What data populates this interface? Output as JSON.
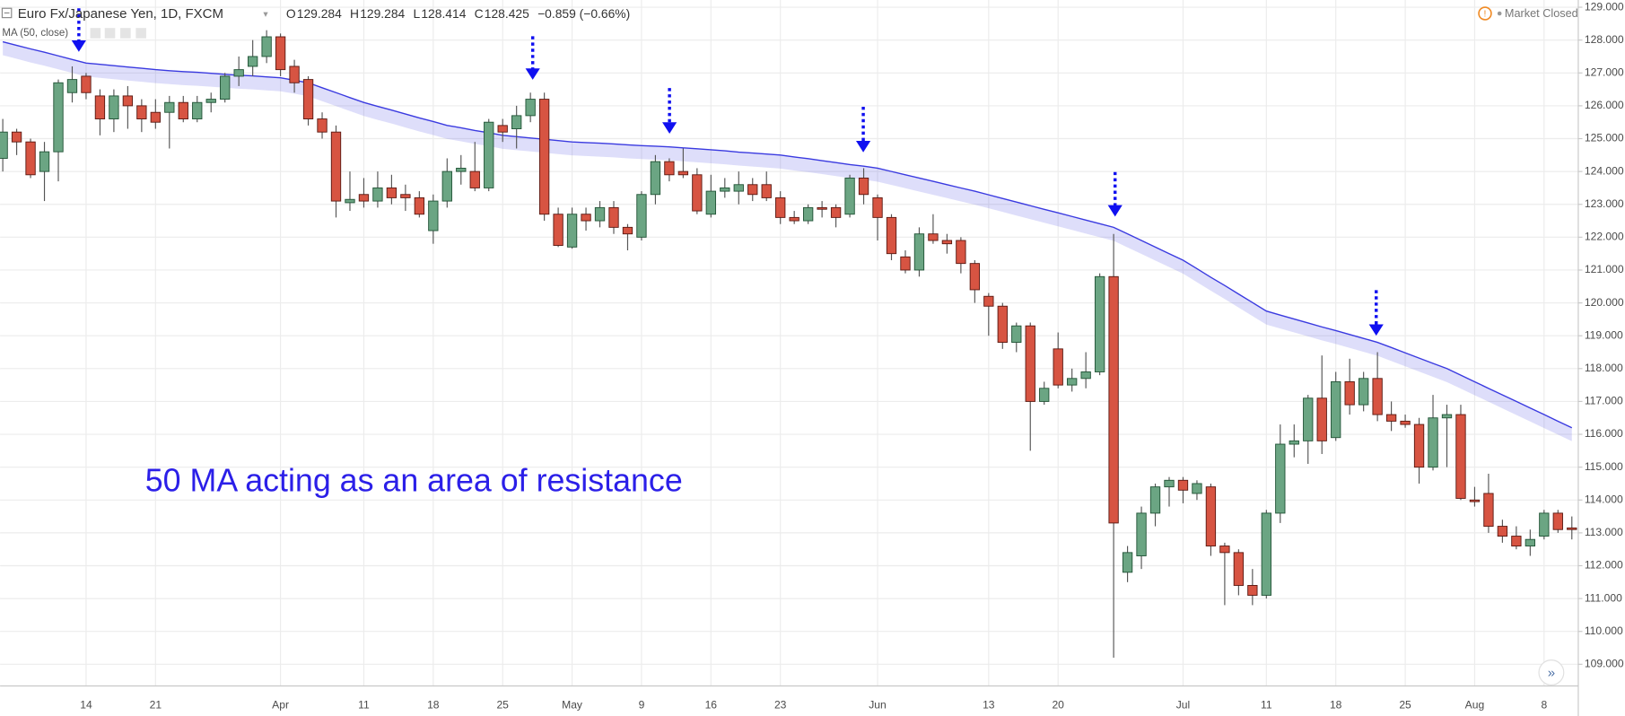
{
  "chart_data": {
    "type": "candlestick",
    "title": "Euro Fx/Japanese Yen, 1D, FXCM",
    "quote": [
      {
        "label": "O",
        "value": 129.284
      },
      {
        "label": "H",
        "value": 129.284
      },
      {
        "label": "L",
        "value": 128.414
      },
      {
        "label": "C",
        "value": 128.425
      }
    ],
    "change": "−0.859 (−0.66%)",
    "status": "Market Closed",
    "annotation": "50 MA acting as an area of resistance",
    "categories": [
      null,
      null,
      null,
      null,
      null,
      null,
      "14",
      null,
      null,
      null,
      null,
      "21",
      null,
      null,
      null,
      null,
      null,
      null,
      null,
      null,
      "Apr",
      null,
      null,
      null,
      null,
      null,
      "11",
      null,
      null,
      null,
      null,
      "18",
      null,
      null,
      null,
      null,
      "25",
      null,
      null,
      null,
      null,
      "May",
      null,
      null,
      null,
      null,
      "9",
      null,
      null,
      null,
      null,
      "16",
      null,
      null,
      null,
      null,
      "23",
      null,
      null,
      null,
      null,
      null,
      null,
      "Jun",
      null,
      null,
      null,
      null,
      null,
      null,
      null,
      "13",
      null,
      null,
      null,
      null,
      "20",
      null,
      null,
      null,
      null,
      null,
      null,
      null,
      null,
      "Jul",
      null,
      null,
      null,
      null,
      null,
      "11",
      null,
      null,
      null,
      null,
      "18",
      null,
      null,
      null,
      null,
      "25",
      null,
      null,
      null,
      null,
      "Aug",
      null,
      null,
      null,
      null,
      "8",
      null,
      null
    ],
    "open": [
      124.4,
      125.2,
      124.9,
      124.0,
      124.6,
      126.4,
      126.9,
      126.3,
      125.6,
      126.3,
      126.0,
      125.8,
      125.8,
      126.1,
      125.6,
      126.1,
      126.2,
      126.9,
      127.2,
      127.5,
      128.1,
      127.2,
      126.8,
      125.6,
      125.2,
      123.05,
      123.3,
      123.1,
      123.5,
      123.3,
      123.2,
      122.2,
      123.1,
      124.0,
      124.0,
      123.5,
      125.4,
      125.3,
      125.7,
      126.2,
      122.7,
      121.7,
      122.7,
      122.5,
      122.9,
      122.3,
      122.0,
      123.3,
      124.3,
      124.0,
      123.9,
      122.7,
      123.4,
      123.4,
      123.6,
      123.6,
      123.2,
      122.6,
      122.5,
      122.9,
      122.9,
      122.7,
      123.8,
      123.2,
      122.6,
      121.4,
      121.0,
      122.1,
      121.9,
      121.9,
      121.2,
      120.2,
      119.9,
      118.8,
      119.3,
      117.0,
      118.6,
      117.5,
      117.7,
      117.9,
      120.8,
      111.8,
      112.3,
      113.6,
      114.4,
      114.6,
      114.2,
      114.4,
      112.6,
      112.4,
      111.4,
      111.1,
      113.6,
      115.7,
      115.8,
      117.1,
      115.9,
      117.6,
      116.9,
      117.7,
      116.6,
      116.4,
      116.3,
      115.0,
      116.5,
      116.6,
      114.0,
      114.2,
      113.2,
      112.9,
      112.6,
      112.9,
      113.6,
      113.15
    ],
    "high": [
      125.6,
      125.3,
      125.0,
      124.9,
      126.8,
      127.2,
      127.0,
      126.5,
      126.5,
      126.6,
      126.2,
      126.2,
      126.3,
      126.3,
      126.3,
      126.4,
      127.0,
      127.5,
      128.0,
      128.3,
      128.2,
      127.4,
      126.9,
      125.8,
      125.4,
      124.0,
      123.8,
      124.0,
      123.9,
      123.6,
      123.4,
      123.3,
      124.4,
      124.5,
      124.9,
      125.6,
      125.6,
      126.0,
      126.4,
      126.4,
      122.9,
      122.9,
      122.9,
      123.1,
      123.1,
      122.4,
      123.4,
      124.5,
      124.4,
      124.7,
      124.1,
      123.9,
      123.8,
      124.0,
      123.8,
      124.0,
      123.4,
      122.8,
      123.0,
      123.1,
      123.0,
      123.9,
      124.1,
      123.3,
      122.7,
      121.6,
      122.3,
      122.7,
      122.1,
      122.0,
      121.3,
      120.3,
      120.0,
      119.4,
      119.4,
      117.6,
      119.1,
      118.0,
      118.5,
      120.9,
      122.1,
      112.6,
      113.8,
      114.5,
      114.7,
      114.7,
      114.6,
      114.5,
      112.7,
      112.5,
      111.9,
      113.7,
      116.3,
      116.3,
      117.2,
      118.4,
      117.9,
      118.3,
      117.9,
      118.5,
      117.0,
      116.6,
      116.5,
      117.2,
      116.9,
      116.9,
      114.4,
      114.8,
      113.4,
      113.2,
      113.1,
      113.7,
      113.7,
      113.5
    ],
    "low": [
      124.0,
      124.5,
      123.8,
      123.1,
      123.7,
      126.1,
      126.2,
      125.1,
      125.2,
      125.3,
      125.2,
      125.3,
      124.7,
      125.5,
      125.5,
      125.8,
      126.1,
      126.6,
      126.9,
      127.3,
      126.9,
      126.4,
      125.4,
      125.0,
      122.6,
      122.8,
      122.9,
      122.9,
      123.0,
      122.8,
      122.6,
      121.8,
      122.9,
      123.6,
      123.4,
      123.4,
      124.9,
      124.7,
      125.5,
      122.5,
      121.7,
      121.65,
      122.2,
      122.3,
      122.1,
      121.6,
      121.9,
      123.0,
      123.7,
      123.8,
      122.7,
      122.6,
      123.2,
      123.0,
      123.1,
      123.1,
      122.4,
      122.4,
      122.4,
      122.6,
      122.3,
      122.6,
      123.0,
      121.9,
      121.3,
      120.9,
      120.8,
      121.8,
      121.5,
      120.9,
      120.0,
      119.0,
      118.6,
      118.5,
      115.5,
      116.9,
      117.4,
      117.3,
      117.4,
      117.8,
      109.2,
      111.5,
      111.9,
      113.2,
      113.8,
      113.9,
      114.0,
      112.3,
      110.8,
      111.1,
      110.8,
      111.0,
      113.3,
      115.3,
      115.1,
      115.4,
      115.8,
      116.6,
      116.7,
      116.4,
      116.1,
      116.2,
      114.5,
      114.9,
      115.0,
      114.0,
      113.8,
      113.0,
      112.7,
      112.5,
      112.3,
      112.8,
      113.0,
      112.8
    ],
    "close": [
      125.2,
      124.9,
      123.9,
      124.6,
      126.7,
      126.8,
      126.4,
      125.6,
      126.3,
      126.0,
      125.6,
      125.5,
      126.1,
      125.6,
      126.1,
      126.2,
      126.9,
      127.1,
      127.5,
      128.1,
      127.1,
      126.7,
      125.6,
      125.2,
      123.1,
      123.15,
      123.1,
      123.5,
      123.2,
      123.2,
      122.7,
      123.1,
      124.0,
      124.1,
      123.5,
      125.5,
      125.2,
      125.7,
      126.2,
      122.7,
      121.75,
      122.7,
      122.5,
      122.9,
      122.3,
      122.1,
      123.3,
      124.3,
      123.9,
      123.9,
      122.8,
      123.4,
      123.5,
      123.6,
      123.3,
      123.2,
      122.6,
      122.5,
      122.9,
      122.85,
      122.6,
      123.8,
      123.3,
      122.6,
      121.5,
      121.0,
      122.1,
      121.9,
      121.8,
      121.2,
      120.4,
      119.9,
      118.8,
      119.3,
      117.0,
      117.4,
      117.5,
      117.7,
      117.9,
      120.8,
      113.3,
      112.4,
      113.6,
      114.4,
      114.6,
      114.3,
      114.5,
      112.6,
      112.4,
      111.4,
      111.1,
      113.6,
      115.7,
      115.8,
      117.1,
      115.8,
      117.6,
      116.9,
      117.7,
      116.6,
      116.4,
      116.3,
      115.0,
      116.5,
      116.6,
      114.05,
      113.95,
      113.2,
      112.9,
      112.6,
      112.8,
      113.6,
      113.1,
      113.1
    ],
    "up_color": "#6ba583",
    "down_color": "#d75442",
    "series": [
      {
        "name": "MA (50, close)",
        "color": "#3a3ae0",
        "values": [
          127.95,
          127.84,
          127.73,
          127.63,
          127.52,
          127.41,
          127.3,
          127.26,
          127.22,
          127.18,
          127.14,
          127.1,
          127.07,
          127.04,
          127.02,
          126.99,
          126.96,
          126.93,
          126.91,
          126.88,
          126.85,
          126.78,
          126.7,
          126.55,
          126.4,
          126.25,
          126.1,
          125.98,
          125.87,
          125.75,
          125.63,
          125.52,
          125.4,
          125.33,
          125.25,
          125.18,
          125.1,
          125.06,
          125.02,
          124.98,
          124.94,
          124.9,
          124.88,
          124.86,
          124.84,
          124.81,
          124.79,
          124.77,
          124.75,
          124.72,
          124.69,
          124.66,
          124.63,
          124.59,
          124.56,
          124.53,
          124.5,
          124.44,
          124.39,
          124.33,
          124.27,
          124.21,
          124.16,
          124.1,
          124.0,
          123.9,
          123.8,
          123.7,
          123.6,
          123.5,
          123.4,
          123.29,
          123.18,
          123.07,
          122.96,
          122.85,
          122.74,
          122.63,
          122.52,
          122.41,
          122.3,
          122.1,
          121.9,
          121.7,
          121.5,
          121.3,
          121.04,
          120.78,
          120.53,
          120.27,
          120.01,
          119.75,
          119.63,
          119.51,
          119.39,
          119.27,
          119.16,
          119.04,
          118.92,
          118.8,
          118.64,
          118.48,
          118.32,
          118.16,
          118.0,
          117.8,
          117.6,
          117.4,
          117.2,
          117.0,
          116.8,
          116.6,
          116.4,
          116.2
        ]
      }
    ],
    "ylim": [
      108.34,
      129.22
    ],
    "yticks": [
      {
        "value": 109,
        "label": "109.000"
      },
      {
        "value": 110,
        "label": "110.000"
      },
      {
        "value": 111,
        "label": "111.000"
      },
      {
        "value": 112,
        "label": "112.000"
      },
      {
        "value": 113,
        "label": "113.000"
      },
      {
        "value": 114,
        "label": "114.000"
      },
      {
        "value": 115,
        "label": "115.000"
      },
      {
        "value": 116,
        "label": "116.000"
      },
      {
        "value": 117,
        "label": "117.000"
      },
      {
        "value": 118,
        "label": "118.000"
      },
      {
        "value": 119,
        "label": "119.000"
      },
      {
        "value": 120,
        "label": "120.000"
      },
      {
        "value": 121,
        "label": "121.000"
      },
      {
        "value": 122,
        "label": "122.000"
      },
      {
        "value": 123,
        "label": "123.000"
      },
      {
        "value": 124,
        "label": "124.000"
      },
      {
        "value": 125,
        "label": "125.000"
      },
      {
        "value": 126,
        "label": "126.000"
      },
      {
        "value": 127,
        "label": "127.000"
      },
      {
        "value": 128,
        "label": "128.000"
      },
      {
        "value": 129,
        "label": "129.000"
      }
    ],
    "grid": true
  }
}
